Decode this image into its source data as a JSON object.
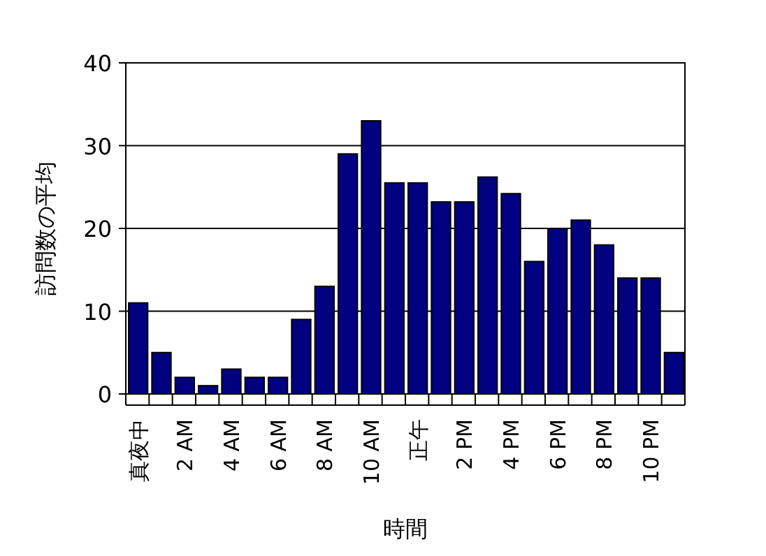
{
  "chart_data": {
    "type": "bar",
    "xlabel": "時間",
    "ylabel": "訪問数の平均",
    "categories": [
      "真夜中",
      null,
      "2 AM",
      null,
      "4 AM",
      null,
      "6 AM",
      null,
      "8 AM",
      null,
      "10 AM",
      null,
      "正午",
      null,
      "2 PM",
      null,
      "4 PM",
      null,
      "6 PM",
      null,
      "8 PM",
      null,
      "10 PM",
      null
    ],
    "values": [
      11,
      5,
      2,
      1,
      3,
      2,
      2,
      9,
      13,
      29,
      33,
      25.5,
      25.5,
      23.2,
      23.2,
      26.2,
      24.2,
      16,
      20,
      21,
      18,
      14,
      14,
      5
    ],
    "color": "#000080",
    "ylim": [
      0,
      40
    ],
    "yticks": [
      0,
      10,
      20,
      30,
      40
    ],
    "grid": "y"
  }
}
